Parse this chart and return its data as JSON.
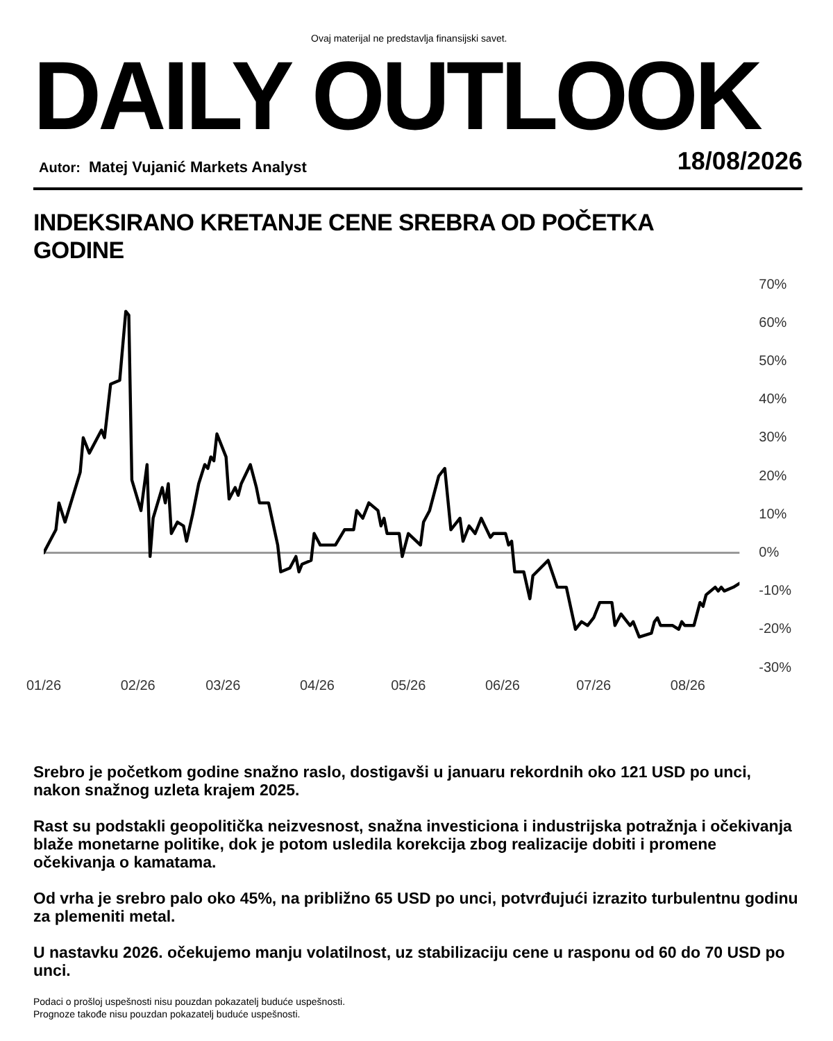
{
  "chart_data": {
    "type": "line",
    "title": "DAILY OUTLOOK",
    "subtitle": "INDEKSIRANO KRETANJE CENE SREBRA OD POČETKA GODINE",
    "annotations": [
      "Ovaj materijal ne predstavlja finansijski savet.",
      "Autor:",
      "Matej Vujanić Markets Analyst",
      "18/08/2026",
      "Srebro je početkom godine snažno raslo, dostigavši u januaru rekordnih oko 121 USD po unci, nakon snažnog uzleta krajem 2025.",
      "Rast su podstakli geopolitička neizvesnost, snažna investiciona i industrijska potražnja i očekivanja blaže monetarne politike, dok je potom usledila korekcija zbog realizacije dobiti i promene očekivanja o kamatama.",
      "Od vrha je srebro palo oko 45%, na približno 65 USD po unci, potvrđujući izrazito turbulentnu godinu za plemeniti metal.",
      "U nastavku 2026. očekujemo manju volatilnost, uz stabilizaciju cene u rasponu od 60 do 70 USD po unci.",
      "Podaci o prošloj uspešnosti nisu pouzdan pokazatelj buduće uspešnosti.",
      "Prognoze takođe nisu pouzdan pokazatelj buduće uspešnosti."
    ],
    "x": [
      "2026-01-01",
      "2026-01-05",
      "2026-01-06",
      "2026-01-08",
      "2026-01-13",
      "2026-01-14",
      "2026-01-16",
      "2026-01-20",
      "2026-01-21",
      "2026-01-23",
      "2026-01-26",
      "2026-01-28",
      "2026-01-29",
      "2026-01-30",
      "2026-02-02",
      "2026-02-04",
      "2026-02-05",
      "2026-02-06",
      "2026-02-09",
      "2026-02-10",
      "2026-02-11",
      "2026-02-12",
      "2026-02-14",
      "2026-02-16",
      "2026-02-17",
      "2026-02-19",
      "2026-02-21",
      "2026-02-23",
      "2026-02-24",
      "2026-02-25",
      "2026-02-26",
      "2026-02-27",
      "2026-03-02",
      "2026-03-03",
      "2026-03-05",
      "2026-03-06",
      "2026-03-07",
      "2026-03-10",
      "2026-03-12",
      "2026-03-13",
      "2026-03-16",
      "2026-03-19",
      "2026-03-20",
      "2026-03-23",
      "2026-03-25",
      "2026-03-26",
      "2026-03-27",
      "2026-03-30",
      "2026-03-31",
      "2026-04-02",
      "2026-04-07",
      "2026-04-10",
      "2026-04-13",
      "2026-04-14",
      "2026-04-16",
      "2026-04-18",
      "2026-04-21",
      "2026-04-22",
      "2026-04-23",
      "2026-04-24",
      "2026-04-28",
      "2026-04-29",
      "2026-05-01",
      "2026-05-05",
      "2026-05-06",
      "2026-05-08",
      "2026-05-11",
      "2026-05-13",
      "2026-05-15",
      "2026-05-18",
      "2026-05-19",
      "2026-05-21",
      "2026-05-23",
      "2026-05-25",
      "2026-05-28",
      "2026-05-29",
      "2026-06-02",
      "2026-06-03",
      "2026-06-04",
      "2026-06-05",
      "2026-06-08",
      "2026-06-10",
      "2026-06-11",
      "2026-06-16",
      "2026-06-19",
      "2026-06-22",
      "2026-06-25",
      "2026-06-27",
      "2026-06-29",
      "2026-07-01",
      "2026-07-03",
      "2026-07-07",
      "2026-07-08",
      "2026-07-10",
      "2026-07-12",
      "2026-07-13",
      "2026-07-14",
      "2026-07-16",
      "2026-07-20",
      "2026-07-21",
      "2026-07-22",
      "2026-07-23",
      "2026-07-25",
      "2026-07-27",
      "2026-07-29",
      "2026-07-30",
      "2026-07-31",
      "2026-08-03",
      "2026-08-05",
      "2026-08-06",
      "2026-08-07",
      "2026-08-10",
      "2026-08-11",
      "2026-08-12",
      "2026-08-13",
      "2026-08-16",
      "2026-08-18"
    ],
    "series": [
      {
        "color": "#000000",
        "values": [
          0,
          6,
          13,
          8,
          21,
          30,
          26,
          32,
          30,
          44,
          45,
          63,
          62,
          19,
          11,
          23,
          -1,
          9,
          17,
          13,
          18,
          5,
          8,
          7,
          3,
          10,
          18,
          23,
          22,
          25,
          24,
          31,
          25,
          14,
          17,
          15,
          18,
          23,
          17,
          13,
          13,
          2,
          -5,
          -4,
          -1,
          -5,
          -3,
          -2,
          5,
          2,
          2,
          6,
          6,
          11,
          9,
          13,
          11,
          7,
          9,
          5,
          5,
          -1,
          5,
          2,
          8,
          11,
          20,
          22,
          6,
          9,
          3,
          7,
          5,
          9,
          4,
          5,
          5,
          2,
          3,
          -5,
          -5,
          -12,
          -6,
          -2,
          -9,
          -9,
          -20,
          -18,
          -19,
          -17,
          -13,
          -13,
          -19,
          -16,
          -18,
          -19,
          -18,
          -22,
          -21,
          -18,
          -17,
          -19,
          -19,
          -19,
          -20,
          -18,
          -19,
          -19,
          -13,
          -14,
          -11,
          -9,
          -10,
          -9,
          -10,
          -9,
          -8
        ]
      }
    ],
    "xlim": [
      "2026-01-01",
      "2026-08-18"
    ],
    "xticks": [
      {
        "value": "2026-01-01",
        "label": "01/26"
      },
      {
        "value": "2026-02-01",
        "label": "02/26"
      },
      {
        "value": "2026-03-01",
        "label": "03/26"
      },
      {
        "value": "2026-04-01",
        "label": "04/26"
      },
      {
        "value": "2026-05-01",
        "label": "05/26"
      },
      {
        "value": "2026-06-01",
        "label": "06/26"
      },
      {
        "value": "2026-07-01",
        "label": "07/26"
      },
      {
        "value": "2026-08-01",
        "label": "08/26"
      }
    ],
    "ylim": [
      -30,
      70
    ],
    "yticks": [
      {
        "value": 70,
        "label": "70%"
      },
      {
        "value": 60,
        "label": "60%"
      },
      {
        "value": 50,
        "label": "50%"
      },
      {
        "value": 40,
        "label": "40%"
      },
      {
        "value": 30,
        "label": "30%"
      },
      {
        "value": 20,
        "label": "20%"
      },
      {
        "value": 10,
        "label": "10%"
      },
      {
        "value": 0,
        "label": "0%"
      },
      {
        "value": -10,
        "label": "-10%"
      },
      {
        "value": -20,
        "label": "-20%"
      },
      {
        "value": -30,
        "label": "-30%"
      }
    ],
    "ref_lines": [
      {
        "axis": "y",
        "value": 0,
        "color": "#999999"
      }
    ],
    "grid": false,
    "legend": false,
    "marker": "none",
    "line_style": "solid"
  }
}
